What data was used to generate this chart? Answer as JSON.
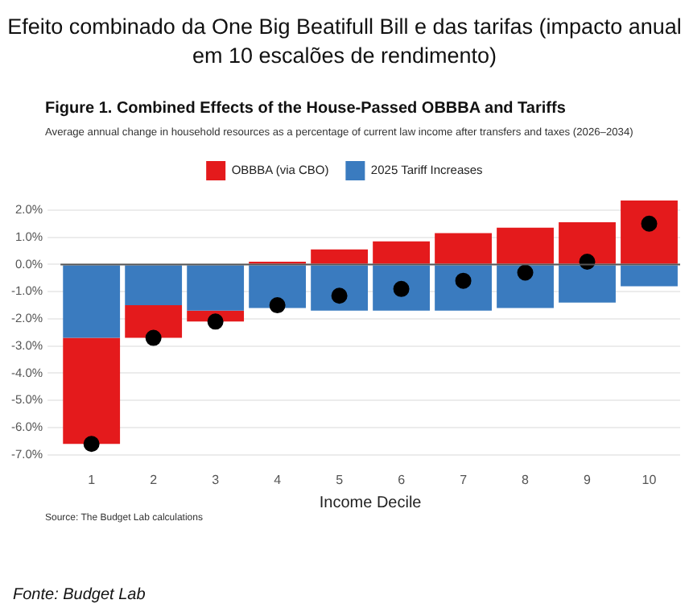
{
  "chart_data": {
    "type": "bar",
    "stacked": true,
    "title": "Figure 1. Combined Effects of the House-Passed OBBBA and Tariffs",
    "subtitle": "Average annual change in household resources as a percentage of current law income after transfers and taxes (2026–2034)",
    "annotations": [
      "Efeito combinado da One Big Beatifull Bill e das tarifas (impacto anual em 10 escalões de rendimento)",
      "Source: The Budget Lab calculations",
      "Fonte: Budget Lab"
    ],
    "xlabel": "Income Decile",
    "categories": [
      "1",
      "2",
      "3",
      "4",
      "5",
      "6",
      "7",
      "8",
      "9",
      "10"
    ],
    "series": [
      {
        "name": "2025 Tariff Increases",
        "color": "#3a7bbf",
        "values": [
          -2.7,
          -1.5,
          -1.7,
          -1.6,
          -1.7,
          -1.7,
          -1.7,
          -1.6,
          -1.4,
          -0.8
        ]
      },
      {
        "name": "OBBBA (via CBO)",
        "color": "#e41a1c",
        "values": [
          -3.9,
          -1.2,
          -0.4,
          0.1,
          0.55,
          0.85,
          1.15,
          1.35,
          1.55,
          2.35
        ]
      },
      {
        "type": "scatter",
        "color": "#000000",
        "x": [
          "1",
          "2",
          "3",
          "4",
          "5",
          "6",
          "7",
          "8",
          "9",
          "10"
        ],
        "values": [
          -6.6,
          -2.7,
          -2.1,
          -1.5,
          -1.15,
          -0.9,
          -0.6,
          -0.3,
          0.1,
          1.5
        ]
      }
    ],
    "ylim": [
      -7,
      2.5
    ],
    "yticks": [
      {
        "value": -7,
        "label": "-7.0%"
      },
      {
        "value": -6,
        "label": "-6.0%"
      },
      {
        "value": -5,
        "label": "-5.0%"
      },
      {
        "value": -4,
        "label": "-4.0%"
      },
      {
        "value": -3,
        "label": "-3.0%"
      },
      {
        "value": -2,
        "label": "-2.0%"
      },
      {
        "value": -1,
        "label": "-1.0%"
      },
      {
        "value": 0,
        "label": "0.0%"
      },
      {
        "value": 1,
        "label": "1.0%"
      },
      {
        "value": 2,
        "label": "2.0%"
      }
    ],
    "ref_lines": [
      {
        "axis": "y",
        "value": 0,
        "color": "#555555"
      }
    ],
    "grid": "y",
    "legend": "top",
    "marker": "circle"
  }
}
